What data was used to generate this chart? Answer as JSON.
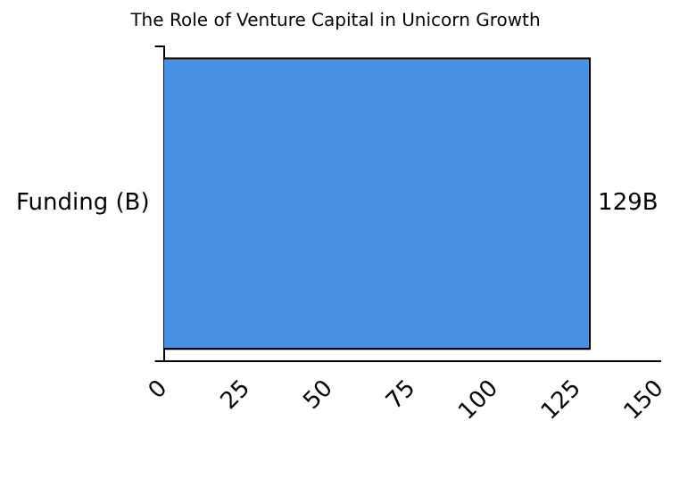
{
  "chart_data": {
    "type": "bar",
    "orientation": "horizontal",
    "title": "The Role of Venture Capital in Unicorn Growth",
    "categories": [
      "Funding (B)"
    ],
    "values": [
      129
    ],
    "color": "#4a90e2",
    "value_labels": [
      "129B"
    ],
    "xlim": [
      0,
      150
    ],
    "xticks": [
      0,
      25,
      50,
      75,
      100,
      125,
      150
    ],
    "grid": false,
    "legend": false
  }
}
